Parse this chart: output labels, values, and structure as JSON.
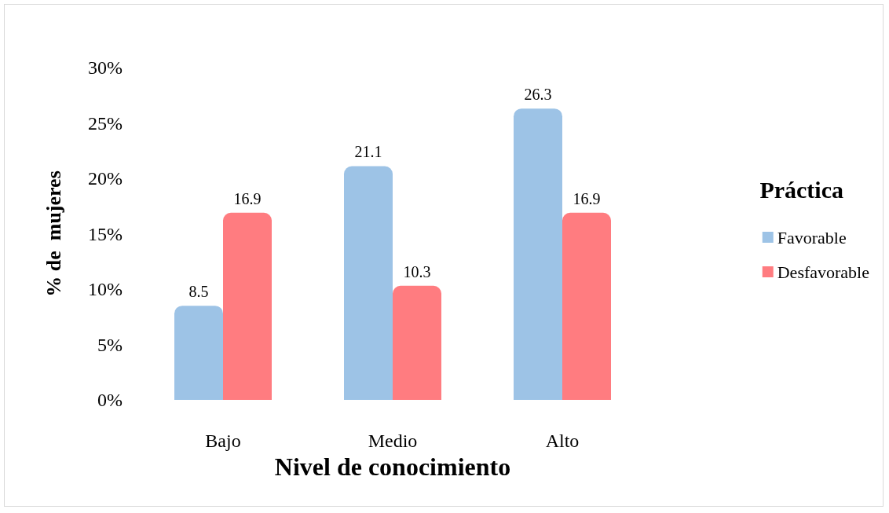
{
  "chart_data": {
    "type": "bar",
    "xlabel": "Nivel de conocimiento",
    "ylabel": "% de  mujeres",
    "legend_title": "Práctica",
    "categories": [
      "Bajo",
      "Medio",
      "Alto"
    ],
    "series": [
      {
        "name": "Favorable",
        "color": "#9dc3e6",
        "values": [
          8.5,
          21.1,
          26.3
        ]
      },
      {
        "name": "Desfavorable",
        "color": "#ff7c80",
        "values": [
          16.9,
          10.3,
          16.9
        ]
      }
    ],
    "ylim": [
      0,
      30
    ],
    "yticks": [
      {
        "value": 0,
        "label": "0%"
      },
      {
        "value": 5,
        "label": "5%"
      },
      {
        "value": 10,
        "label": "10%"
      },
      {
        "value": 15,
        "label": "15%"
      },
      {
        "value": 20,
        "label": "20%"
      },
      {
        "value": 25,
        "label": "25%"
      },
      {
        "value": 30,
        "label": "30%"
      }
    ],
    "data_labels": true,
    "grid": false,
    "legend": "right"
  }
}
